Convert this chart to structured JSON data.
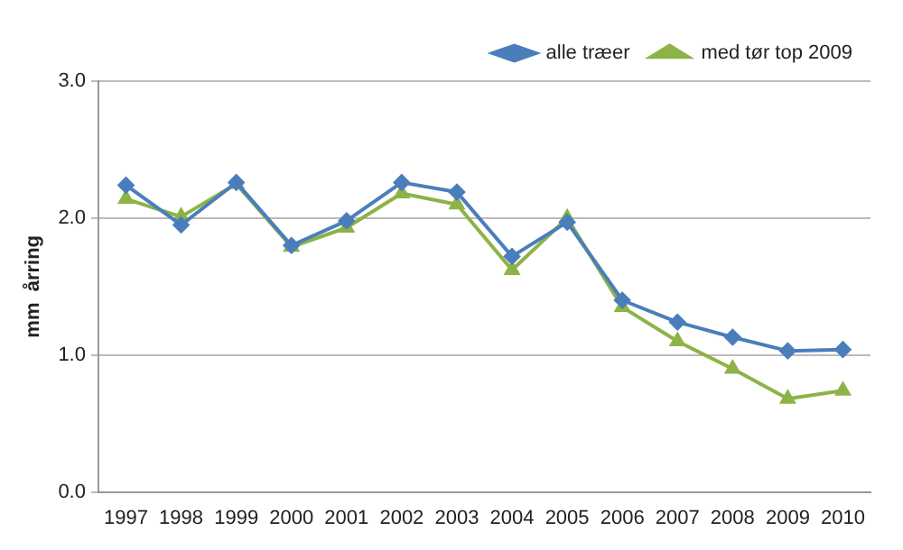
{
  "chart_data": {
    "type": "line",
    "ylabel": "mm  årring",
    "categories": [
      "1997",
      "1998",
      "1999",
      "2000",
      "2001",
      "2002",
      "2003",
      "2004",
      "2005",
      "2006",
      "2007",
      "2008",
      "2009",
      "2010"
    ],
    "series": [
      {
        "name": "alle træer",
        "color": "#4a7ebb",
        "marker": "diamond",
        "values": [
          2.24,
          1.95,
          2.26,
          1.8,
          1.98,
          2.26,
          2.19,
          1.72,
          1.97,
          1.4,
          1.24,
          1.13,
          1.03,
          1.04
        ]
      },
      {
        "name": "med tør top 2009",
        "color": "#8db346",
        "marker": "triangle",
        "values": [
          2.14,
          2.01,
          2.25,
          1.79,
          1.93,
          2.18,
          2.1,
          1.62,
          2.0,
          1.35,
          1.1,
          0.9,
          0.68,
          0.74
        ]
      }
    ],
    "ylim": [
      0,
      3
    ],
    "yticks": [
      {
        "value": 0,
        "label": "0.0"
      },
      {
        "value": 1,
        "label": "1.0"
      },
      {
        "value": 2,
        "label": "2.0"
      },
      {
        "value": 3,
        "label": "3.0"
      }
    ],
    "grid": "y",
    "legend": "top right",
    "line_style": "solid"
  }
}
